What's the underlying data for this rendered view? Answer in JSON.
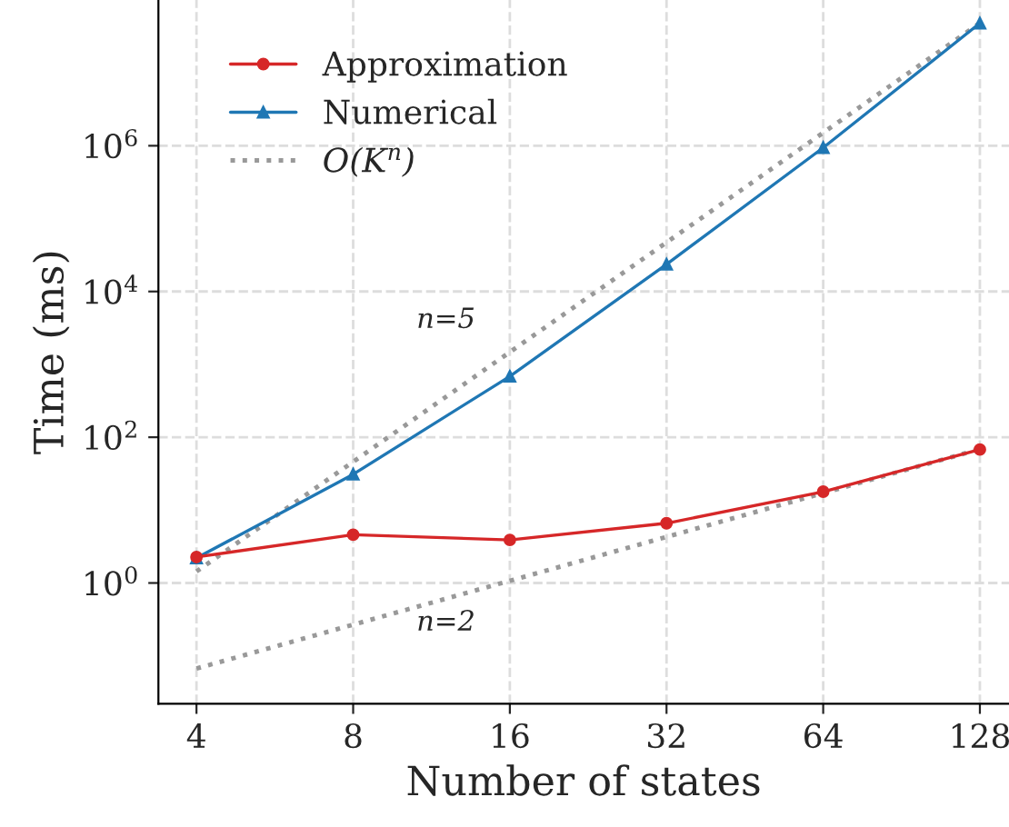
{
  "chart_data": {
    "type": "line",
    "xlabel": "Number of states",
    "ylabel": "Time (ms)",
    "log": "xy",
    "grid": true,
    "legend": "top left",
    "xlim": [
      3.38,
      145.6
    ],
    "ylim": [
      0.022,
      100000000
    ],
    "xticks": [
      4,
      8,
      16,
      32,
      64,
      128
    ],
    "yticks": [
      {
        "value": 1,
        "label": "10$^{0}$"
      },
      {
        "value": 100,
        "label": "10$^{2}$"
      },
      {
        "value": 10000,
        "label": "10$^{4}$"
      },
      {
        "value": 1000000,
        "label": "10$^{6}$"
      }
    ],
    "series": [
      {
        "name": "Approximation",
        "color": "#d62728",
        "marker": "circle",
        "line_style": "solid",
        "x": [
          4,
          8,
          16,
          32,
          64,
          128
        ],
        "values": [
          2.27,
          4.6,
          3.9,
          6.6,
          17.9,
          67.8
        ]
      },
      {
        "name": "Numerical",
        "color": "#1f77b4",
        "marker": "triangle",
        "line_style": "solid",
        "x": [
          4,
          8,
          16,
          32,
          64,
          128
        ],
        "values": [
          2.2,
          31,
          686,
          23600,
          940000,
          48000000
        ]
      },
      {
        "name": "O(K$^{n}$)",
        "color": "#999999",
        "marker": "none",
        "line_style": "dotted",
        "x": [
          4,
          128
        ],
        "values": [
          1.44,
          48300000
        ]
      },
      {
        "color": "#999999",
        "marker": "none",
        "line_style": "dotted",
        "x": [
          4,
          128
        ],
        "values": [
          0.067,
          68.6
        ]
      }
    ],
    "annotations": [
      "n=5",
      "n=2"
    ]
  }
}
